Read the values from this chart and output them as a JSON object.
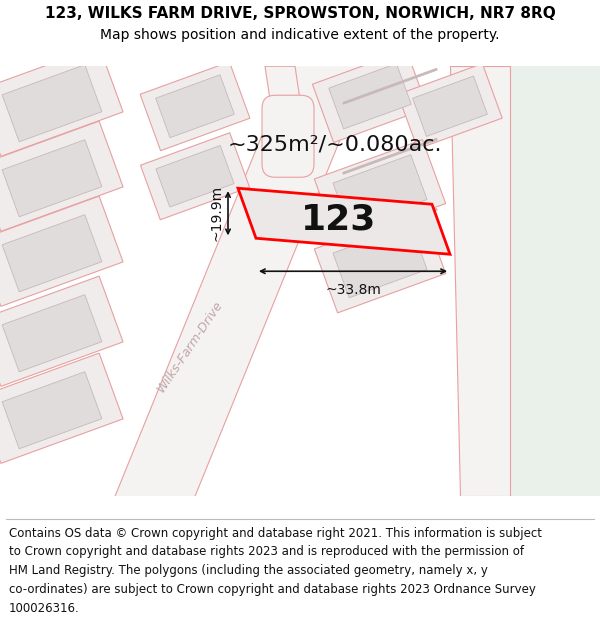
{
  "title_line1": "123, WILKS FARM DRIVE, SPROWSTON, NORWICH, NR7 8RQ",
  "title_line2": "Map shows position and indicative extent of the property.",
  "footer_lines": [
    "Contains OS data © Crown copyright and database right 2021. This information is subject",
    "to Crown copyright and database rights 2023 and is reproduced with the permission of",
    "HM Land Registry. The polygons (including the associated geometry, namely x, y",
    "co-ordinates) are subject to Crown copyright and database rights 2023 Ordnance Survey",
    "100026316."
  ],
  "area_label": "~325m²/~0.080ac.",
  "width_label": "~33.8m",
  "height_label": "~19.9m",
  "plot_number": "123",
  "map_bg": "#f5f2f2",
  "right_bg": "#eaf0ea",
  "road_stroke": "#e8a0a0",
  "road_fill": "#f5f2f2",
  "parcel_stroke": "#e8a0a0",
  "building_fill": "#e0dcdc",
  "building_stroke": "#c8b8b8",
  "highlight_stroke": "#ff0000",
  "highlight_fill": "#ede8e8",
  "arrow_color": "#111111",
  "text_color": "#111111",
  "street_color": "#c0a8a8",
  "title_fontsize": 11,
  "subtitle_fontsize": 10,
  "footer_fontsize": 8.5,
  "area_fontsize": 16,
  "plot_num_fontsize": 26,
  "dim_fontsize": 10,
  "street_fontsize": 9,
  "figsize": [
    6.0,
    6.25
  ],
  "dpi": 100
}
